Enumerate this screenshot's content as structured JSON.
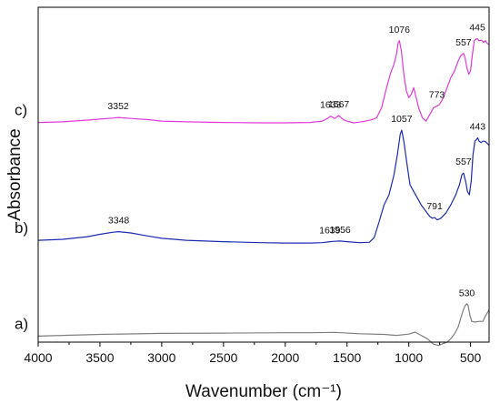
{
  "chart_data": {
    "type": "line",
    "title": "",
    "xlabel": "Wavenumber (cm⁻¹)",
    "ylabel": "Absorbance",
    "x_reversed": true,
    "xlim": [
      4000,
      350
    ],
    "ylim": [
      0,
      1
    ],
    "x_ticks": [
      4000,
      3500,
      3000,
      2500,
      2000,
      1500,
      1000,
      500
    ],
    "grid": false,
    "legend": "none",
    "series": [
      {
        "name": "a)",
        "color": "#7f7f7f",
        "x": [
          4000,
          3500,
          3000,
          2500,
          2000,
          1800,
          1600,
          1400,
          1200,
          1100,
          1000,
          950,
          900,
          850,
          800,
          760,
          720,
          690,
          660,
          630,
          600,
          580,
          560,
          545,
          530,
          520,
          505,
          490,
          470,
          450,
          430,
          400,
          380,
          360,
          350
        ],
        "y": [
          0.018,
          0.023,
          0.026,
          0.027,
          0.028,
          0.028,
          0.029,
          0.025,
          0.023,
          0.02,
          0.024,
          0.03,
          0.02,
          0.01,
          -0.006,
          -0.01,
          -0.004,
          0.0,
          0.01,
          0.025,
          0.045,
          0.07,
          0.095,
          0.108,
          0.115,
          0.11,
          0.08,
          0.062,
          0.06,
          0.061,
          0.062,
          0.062,
          0.078,
          0.09,
          0.097
        ]
      },
      {
        "name": "b)",
        "color": "#1c2bb0",
        "peak_labels": [
          {
            "x": 3348,
            "text": "3348"
          },
          {
            "x": 1639,
            "text": "1639"
          },
          {
            "x": 1556,
            "text": "1556"
          },
          {
            "x": 1057,
            "text": "1057"
          },
          {
            "x": 791,
            "text": "791"
          },
          {
            "x": 557,
            "text": "557"
          },
          {
            "x": 443,
            "text": "443"
          }
        ],
        "x": [
          4000,
          3800,
          3600,
          3500,
          3400,
          3348,
          3250,
          3100,
          3000,
          2800,
          2500,
          2200,
          2000,
          1800,
          1700,
          1639,
          1600,
          1556,
          1500,
          1400,
          1320,
          1280,
          1240,
          1200,
          1160,
          1120,
          1090,
          1070,
          1057,
          1040,
          1010,
          990,
          960,
          930,
          900,
          860,
          830,
          810,
          791,
          770,
          740,
          700,
          660,
          620,
          590,
          570,
          557,
          540,
          525,
          510,
          495,
          480,
          465,
          452,
          443,
          430,
          415,
          400,
          385,
          370,
          350
        ],
        "y": [
          0.304,
          0.307,
          0.315,
          0.322,
          0.328,
          0.33,
          0.326,
          0.316,
          0.31,
          0.304,
          0.3,
          0.297,
          0.296,
          0.296,
          0.297,
          0.3,
          0.301,
          0.302,
          0.3,
          0.297,
          0.298,
          0.312,
          0.36,
          0.41,
          0.44,
          0.5,
          0.565,
          0.62,
          0.633,
          0.6,
          0.52,
          0.47,
          0.45,
          0.43,
          0.41,
          0.39,
          0.375,
          0.37,
          0.372,
          0.365,
          0.37,
          0.385,
          0.41,
          0.44,
          0.47,
          0.5,
          0.505,
          0.48,
          0.45,
          0.44,
          0.48,
          0.56,
          0.6,
          0.605,
          0.61,
          0.6,
          0.596,
          0.6,
          0.6,
          0.595,
          0.588
        ]
      },
      {
        "name": "c)",
        "color": "#e03ad8",
        "peak_labels": [
          {
            "x": 3352,
            "text": "3352"
          },
          {
            "x": 1633,
            "text": "1633"
          },
          {
            "x": 1567,
            "text": "1567"
          },
          {
            "x": 1076,
            "text": "1076"
          },
          {
            "x": 773,
            "text": "773"
          },
          {
            "x": 557,
            "text": "557"
          },
          {
            "x": 445,
            "text": "445"
          }
        ],
        "x": [
          4000,
          3800,
          3600,
          3500,
          3400,
          3352,
          3250,
          3100,
          3000,
          2800,
          2500,
          2200,
          2000,
          1800,
          1700,
          1660,
          1633,
          1600,
          1567,
          1530,
          1500,
          1450,
          1400,
          1350,
          1300,
          1260,
          1220,
          1180,
          1150,
          1120,
          1100,
          1085,
          1076,
          1060,
          1040,
          1020,
          1000,
          980,
          960,
          940,
          920,
          890,
          860,
          830,
          800,
          773,
          750,
          720,
          690,
          660,
          630,
          600,
          580,
          565,
          557,
          545,
          530,
          515,
          500,
          485,
          470,
          455,
          445,
          430,
          410,
          395,
          380,
          365,
          350
        ],
        "y": [
          0.656,
          0.658,
          0.663,
          0.666,
          0.669,
          0.671,
          0.668,
          0.664,
          0.66,
          0.658,
          0.656,
          0.655,
          0.655,
          0.656,
          0.66,
          0.668,
          0.675,
          0.668,
          0.677,
          0.664,
          0.66,
          0.655,
          0.657,
          0.66,
          0.664,
          0.67,
          0.7,
          0.76,
          0.8,
          0.83,
          0.86,
          0.895,
          0.9,
          0.87,
          0.8,
          0.75,
          0.73,
          0.74,
          0.76,
          0.73,
          0.7,
          0.67,
          0.66,
          0.68,
          0.7,
          0.705,
          0.71,
          0.73,
          0.76,
          0.79,
          0.81,
          0.84,
          0.855,
          0.86,
          0.862,
          0.85,
          0.82,
          0.8,
          0.81,
          0.86,
          0.9,
          0.905,
          0.906,
          0.9,
          0.902,
          0.895,
          0.9,
          0.892,
          0.888
        ]
      }
    ],
    "annotations": [
      {
        "series": "a)",
        "x": 530,
        "text": "530"
      }
    ]
  }
}
